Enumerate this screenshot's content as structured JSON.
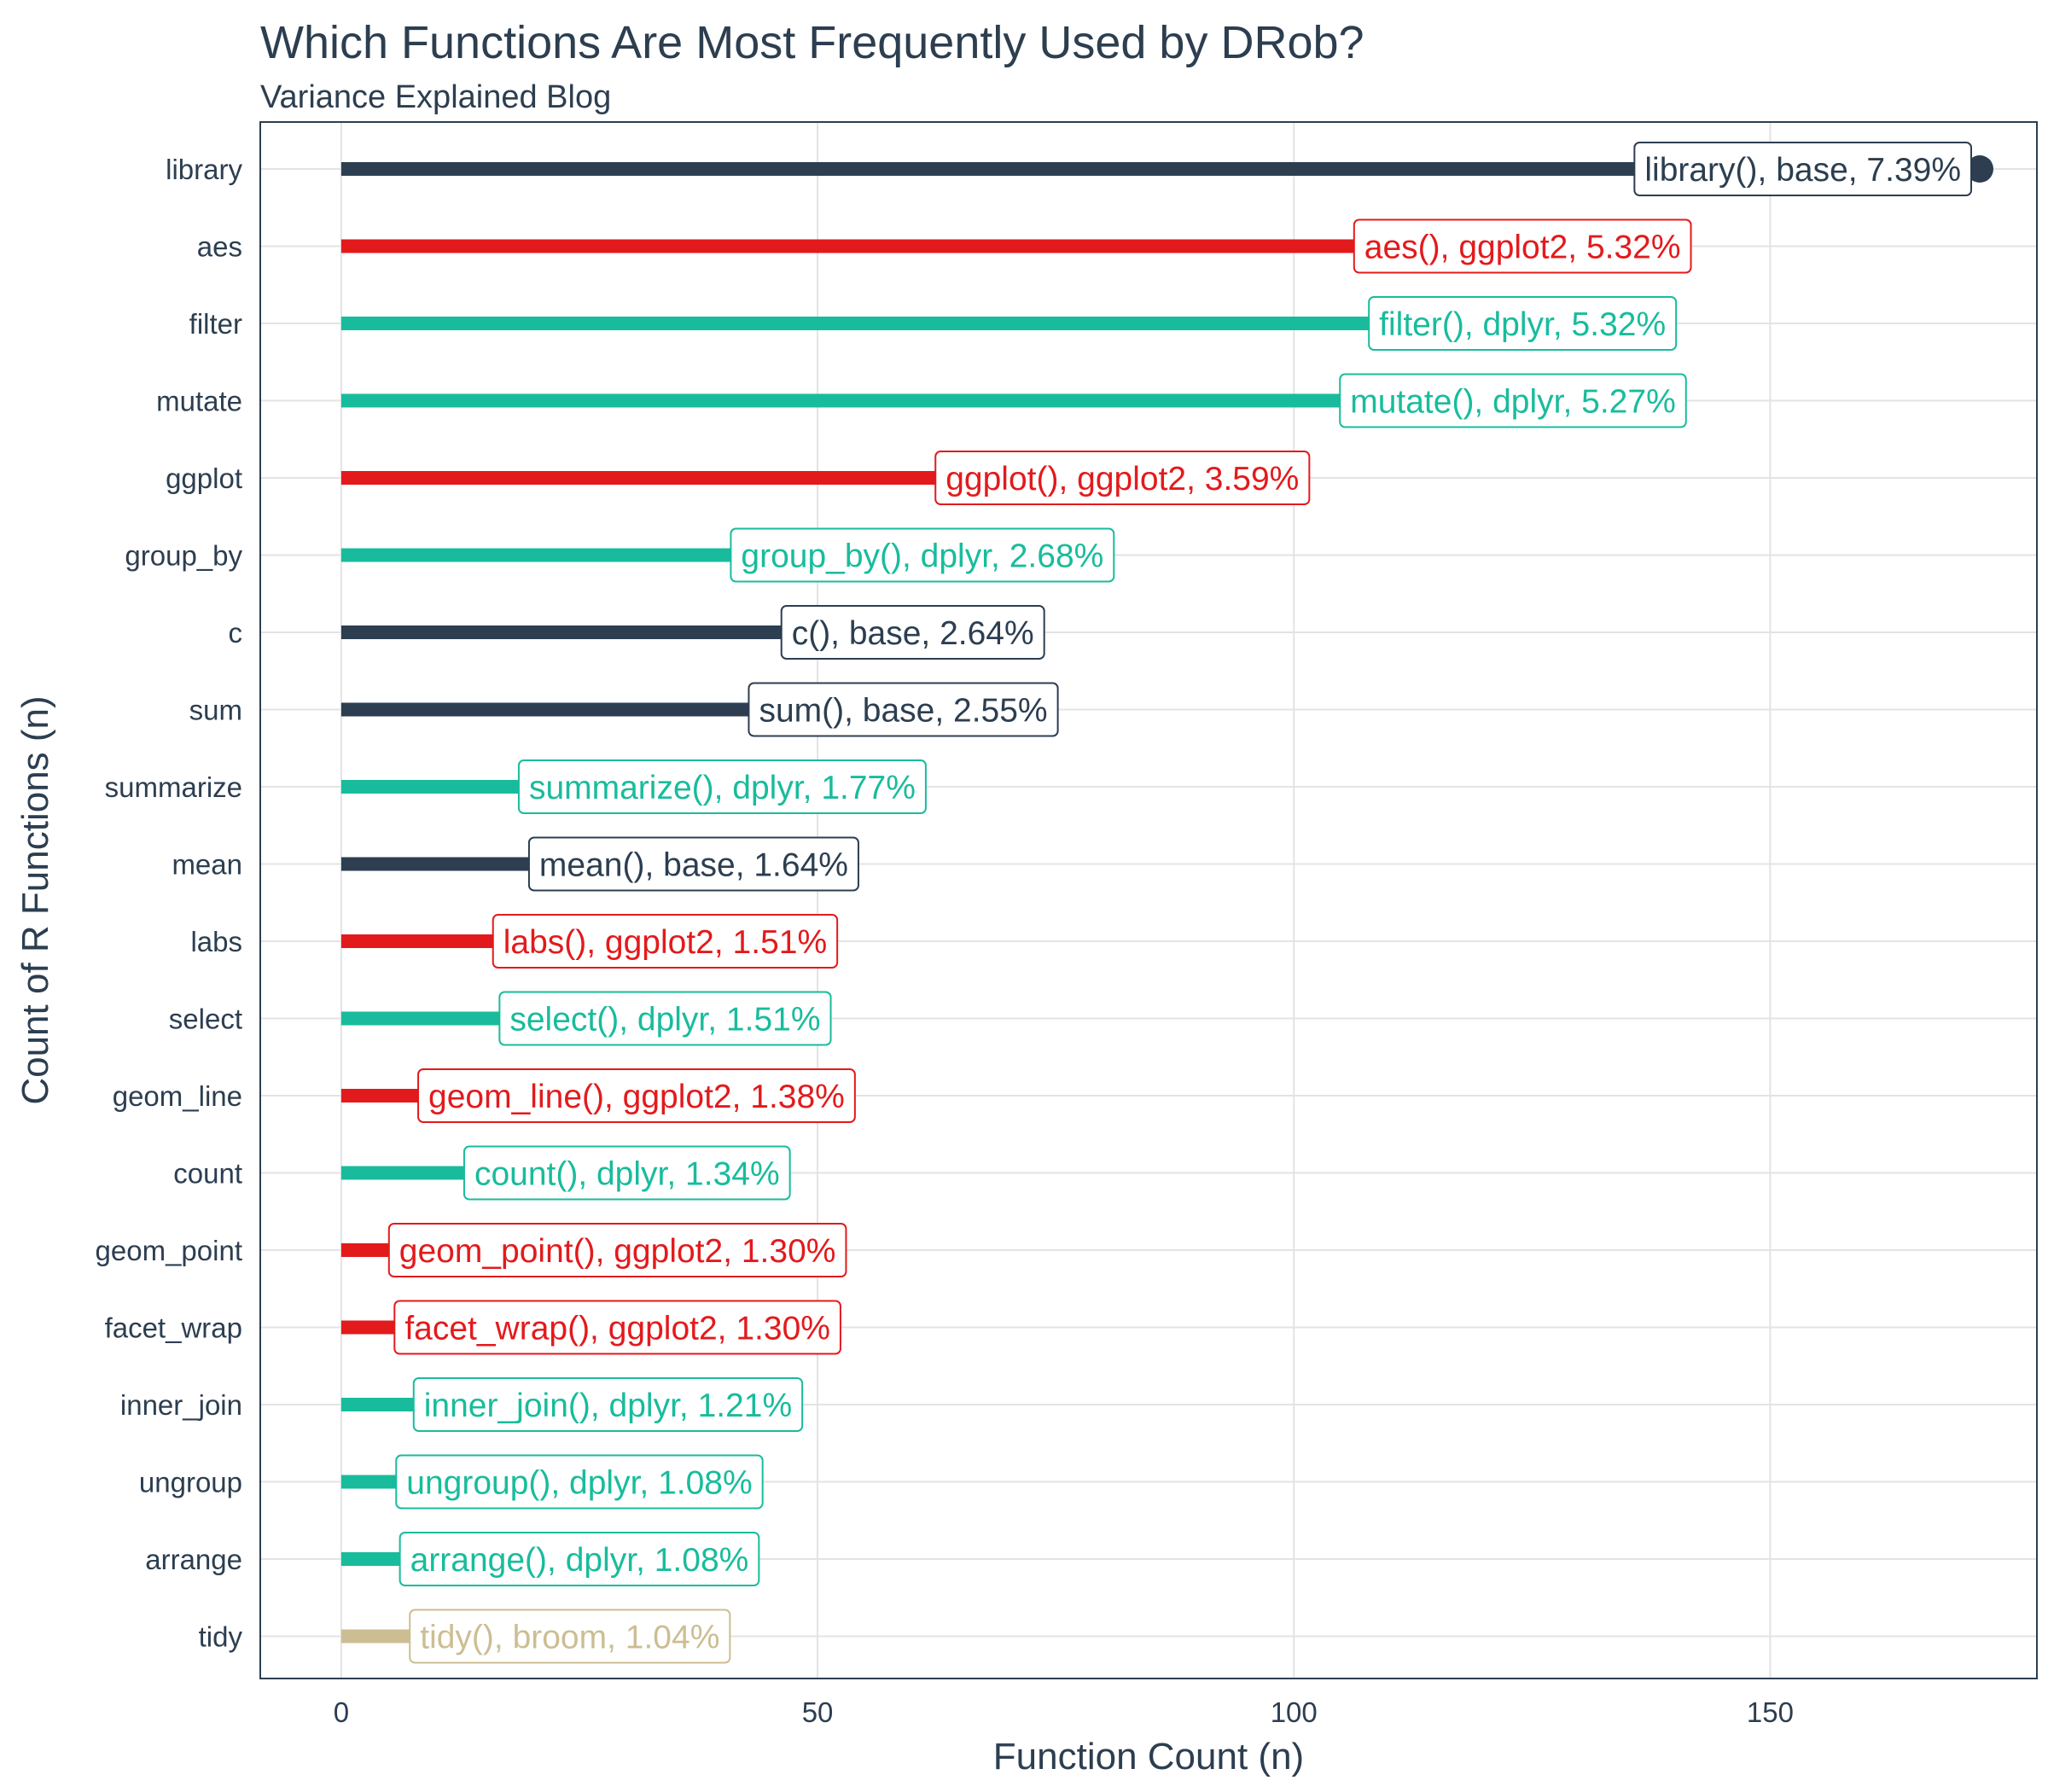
{
  "chart_data": {
    "type": "bar",
    "orientation": "horizontal",
    "title": "Which Functions Are Most Frequently Used by DRob?",
    "subtitle": "Variance Explained Blog",
    "xlabel": "Function Count (n)",
    "ylabel": "Count of R Functions (n)",
    "xlim": [
      -8.5,
      178
    ],
    "x_ticks": [
      0,
      50,
      100,
      150
    ],
    "grid": true,
    "legend": "none",
    "package_colors": {
      "base": "#2c3e50",
      "ggplot2": "#e31a1c",
      "dplyr": "#18bc9c",
      "broom": "#ccbe93"
    },
    "categories": [
      "library",
      "aes",
      "filter",
      "mutate",
      "ggplot",
      "group_by",
      "c",
      "sum",
      "summarize",
      "mean",
      "labs",
      "select",
      "geom_line",
      "count",
      "geom_point",
      "facet_wrap",
      "inner_join",
      "ungroup",
      "arrange",
      "tidy"
    ],
    "bars": [
      {
        "name": "library",
        "package": "base",
        "value": 172,
        "label": "library(), base, 7.39%"
      },
      {
        "name": "aes",
        "package": "ggplot2",
        "value": 124,
        "label": "aes(), ggplot2, 5.32%"
      },
      {
        "name": "filter",
        "package": "dplyr",
        "value": 124,
        "label": "filter(), dplyr, 5.32%"
      },
      {
        "name": "mutate",
        "package": "dplyr",
        "value": 123,
        "label": "mutate(), dplyr, 5.27%"
      },
      {
        "name": "ggplot",
        "package": "ggplot2",
        "value": 82,
        "label": "ggplot(), ggplot2, 3.59%"
      },
      {
        "name": "group_by",
        "package": "dplyr",
        "value": 61,
        "label": "group_by(), dplyr, 2.68%"
      },
      {
        "name": "c",
        "package": "base",
        "value": 60,
        "label": "c(), base, 2.64%"
      },
      {
        "name": "sum",
        "package": "base",
        "value": 59,
        "label": "sum(), base, 2.55%"
      },
      {
        "name": "summarize",
        "package": "dplyr",
        "value": 40,
        "label": "summarize(), dplyr, 1.77%"
      },
      {
        "name": "mean",
        "package": "base",
        "value": 37,
        "label": "mean(), base, 1.64%"
      },
      {
        "name": "labs",
        "package": "ggplot2",
        "value": 34,
        "label": "labs(), ggplot2, 1.51%"
      },
      {
        "name": "select",
        "package": "dplyr",
        "value": 34,
        "label": "select(), dplyr, 1.51%"
      },
      {
        "name": "geom_line",
        "package": "ggplot2",
        "value": 31,
        "label": "geom_line(), ggplot2, 1.38%"
      },
      {
        "name": "count",
        "package": "dplyr",
        "value": 30,
        "label": "count(), dplyr, 1.34%"
      },
      {
        "name": "geom_point",
        "package": "ggplot2",
        "value": 29,
        "label": "geom_point(), ggplot2, 1.30%"
      },
      {
        "name": "facet_wrap",
        "package": "ggplot2",
        "value": 29,
        "label": "facet_wrap(), ggplot2, 1.30%"
      },
      {
        "name": "inner_join",
        "package": "dplyr",
        "value": 28,
        "label": "inner_join(), dplyr, 1.21%"
      },
      {
        "name": "ungroup",
        "package": "dplyr",
        "value": 25,
        "label": "ungroup(), dplyr, 1.08%"
      },
      {
        "name": "arrange",
        "package": "dplyr",
        "value": 25,
        "label": "arrange(), dplyr, 1.08%"
      },
      {
        "name": "tidy",
        "package": "broom",
        "value": 24,
        "label": "tidy(), broom, 1.04%"
      }
    ]
  }
}
